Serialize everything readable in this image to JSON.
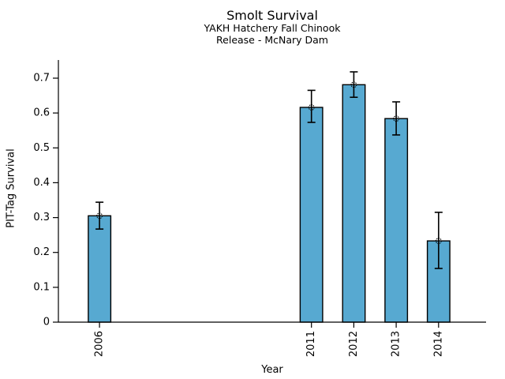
{
  "figure": {
    "title": "Smolt Survival",
    "subtitle_line1": "YAKH Hatchery Fall Chinook",
    "subtitle_line2": "Release - McNary Dam",
    "xlabel": "Year",
    "ylabel": "PIT-Tag Survival",
    "background_color": "#ffffff"
  },
  "chart_data": {
    "type": "bar",
    "title": "Smolt Survival",
    "subtitle": [
      "YAKH Hatchery Fall Chinook",
      "Release - McNary Dam"
    ],
    "xlabel": "Year",
    "ylabel": "PIT-Tag Survival",
    "categories": [
      "2006",
      "2011",
      "2012",
      "2013",
      "2014"
    ],
    "x_numeric": [
      2006,
      2011,
      2012,
      2013,
      2014
    ],
    "values": [
      0.305,
      0.616,
      0.681,
      0.584,
      0.233
    ],
    "error_low": [
      0.267,
      0.573,
      0.645,
      0.537,
      0.154
    ],
    "error_high": [
      0.344,
      0.665,
      0.718,
      0.632,
      0.315
    ],
    "error_style": "caps-with-open-circle-marker-at-bar-top",
    "y_ticks": [
      0,
      0.1,
      0.2,
      0.3,
      0.4,
      0.5,
      0.6,
      0.7
    ],
    "y_tick_labels": [
      "0",
      "0.1",
      "0.2",
      "0.3",
      "0.4",
      "0.5",
      "0.6",
      "0.7"
    ],
    "ylim": [
      0,
      0.752
    ],
    "xlim": [
      2005.03,
      2015.12
    ],
    "grid": false,
    "legend": null,
    "colors": {
      "bar_fill": "#57a9d1",
      "bar_edge": "#000000",
      "error_bar": "#000000",
      "axis": "#000000",
      "text": "#000000"
    }
  }
}
